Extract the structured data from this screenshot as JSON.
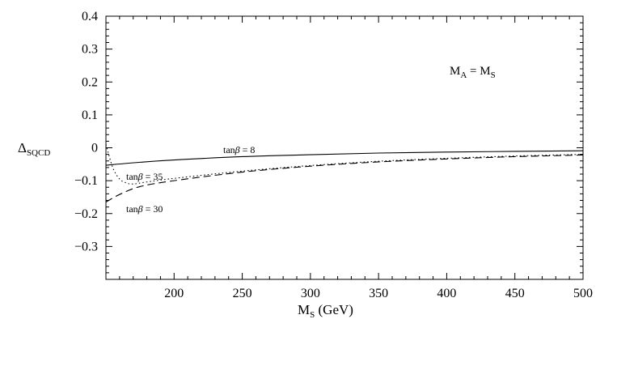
{
  "chart_data": {
    "type": "line",
    "xlabel_main": "M",
    "xlabel_sub": "S",
    "xlabel_unit": " (GeV)",
    "ylabel_main": "Δ",
    "ylabel_sub": "SQCD",
    "xlim": [
      150,
      500
    ],
    "ylim": [
      -0.4,
      0.4
    ],
    "x_ticks": [
      200,
      250,
      300,
      350,
      400,
      450,
      500
    ],
    "y_ticks": [
      0.4,
      0.3,
      0.2,
      0.1,
      0,
      -0.1,
      -0.2,
      -0.3
    ],
    "y_tick_labels": [
      "0.4",
      "0.3",
      "0.2",
      "0.1",
      "0",
      "−0.1",
      "−0.2",
      "−0.3"
    ],
    "grid": false,
    "annotation": {
      "left_main": "M",
      "left_sub": "A",
      "eq": " = ",
      "right_main": "M",
      "right_sub": "S"
    },
    "series": [
      {
        "style": "solid",
        "label_prefix": "tan",
        "label_beta": "β",
        "label_value": " = 8",
        "x": [
          150,
          175,
          200,
          250,
          300,
          350,
          400,
          450,
          500
        ],
        "y": [
          -0.053,
          -0.044,
          -0.037,
          -0.027,
          -0.021,
          -0.016,
          -0.013,
          -0.011,
          -0.009
        ]
      },
      {
        "style": "dotted",
        "label_prefix": "tan",
        "label_beta": "β",
        "label_value": " = 35",
        "x": [
          150,
          155,
          160,
          165,
          170,
          180,
          200,
          250,
          300,
          350,
          400,
          450,
          500
        ],
        "y": [
          0.01,
          -0.06,
          -0.095,
          -0.107,
          -0.11,
          -0.104,
          -0.093,
          -0.071,
          -0.054,
          -0.041,
          -0.032,
          -0.025,
          -0.02
        ]
      },
      {
        "style": "dashed",
        "label_prefix": "tan",
        "label_beta": "β",
        "label_value": " = 30",
        "x": [
          150,
          160,
          175,
          200,
          250,
          300,
          350,
          400,
          450,
          500
        ],
        "y": [
          -0.165,
          -0.142,
          -0.118,
          -0.1,
          -0.074,
          -0.056,
          -0.043,
          -0.034,
          -0.027,
          -0.022
        ]
      }
    ]
  }
}
